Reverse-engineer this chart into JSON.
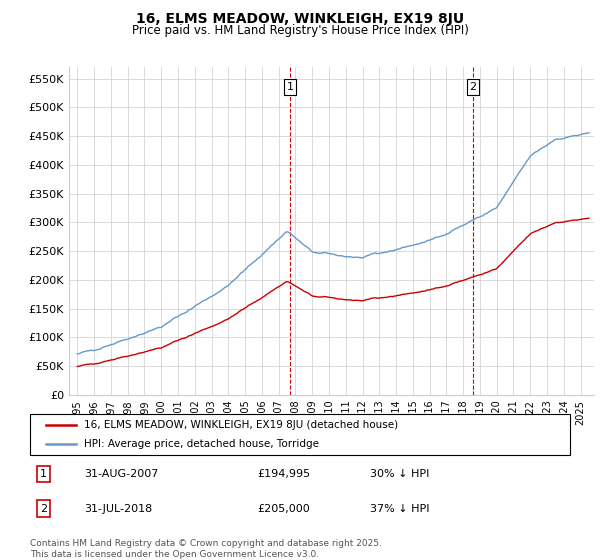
{
  "title": "16, ELMS MEADOW, WINKLEIGH, EX19 8JU",
  "subtitle": "Price paid vs. HM Land Registry's House Price Index (HPI)",
  "legend_entry1": "16, ELMS MEADOW, WINKLEIGH, EX19 8JU (detached house)",
  "legend_entry2": "HPI: Average price, detached house, Torridge",
  "annotation1_label": "1",
  "annotation1_date": "31-AUG-2007",
  "annotation1_price": "£194,995",
  "annotation1_hpi": "30% ↓ HPI",
  "annotation2_label": "2",
  "annotation2_date": "31-JUL-2018",
  "annotation2_price": "£205,000",
  "annotation2_hpi": "37% ↓ HPI",
  "footnote": "Contains HM Land Registry data © Crown copyright and database right 2025.\nThis data is licensed under the Open Government Licence v3.0.",
  "sale1_year": 2007.667,
  "sale1_price": 194995,
  "sale2_year": 2018.583,
  "sale2_price": 205000,
  "line_color_red": "#cc0000",
  "line_color_blue": "#6699cc",
  "dashed_color": "#cc0000",
  "bg_color": "#ffffff",
  "grid_color": "#cccccc",
  "ylim_min": 0,
  "ylim_max": 570000,
  "yticks": [
    0,
    50000,
    100000,
    150000,
    200000,
    250000,
    300000,
    350000,
    400000,
    450000,
    500000,
    550000
  ],
  "xlim_min": 1994.5,
  "xlim_max": 2025.8,
  "hpi_waypoints_x": [
    1995,
    1997,
    2000,
    2004,
    2007.5,
    2009,
    2012,
    2016,
    2018,
    2020,
    2022,
    2023.5,
    2025.5
  ],
  "hpi_waypoints_y": [
    70000,
    88000,
    118000,
    190000,
    285000,
    248000,
    238000,
    268000,
    295000,
    325000,
    415000,
    445000,
    455000
  ]
}
